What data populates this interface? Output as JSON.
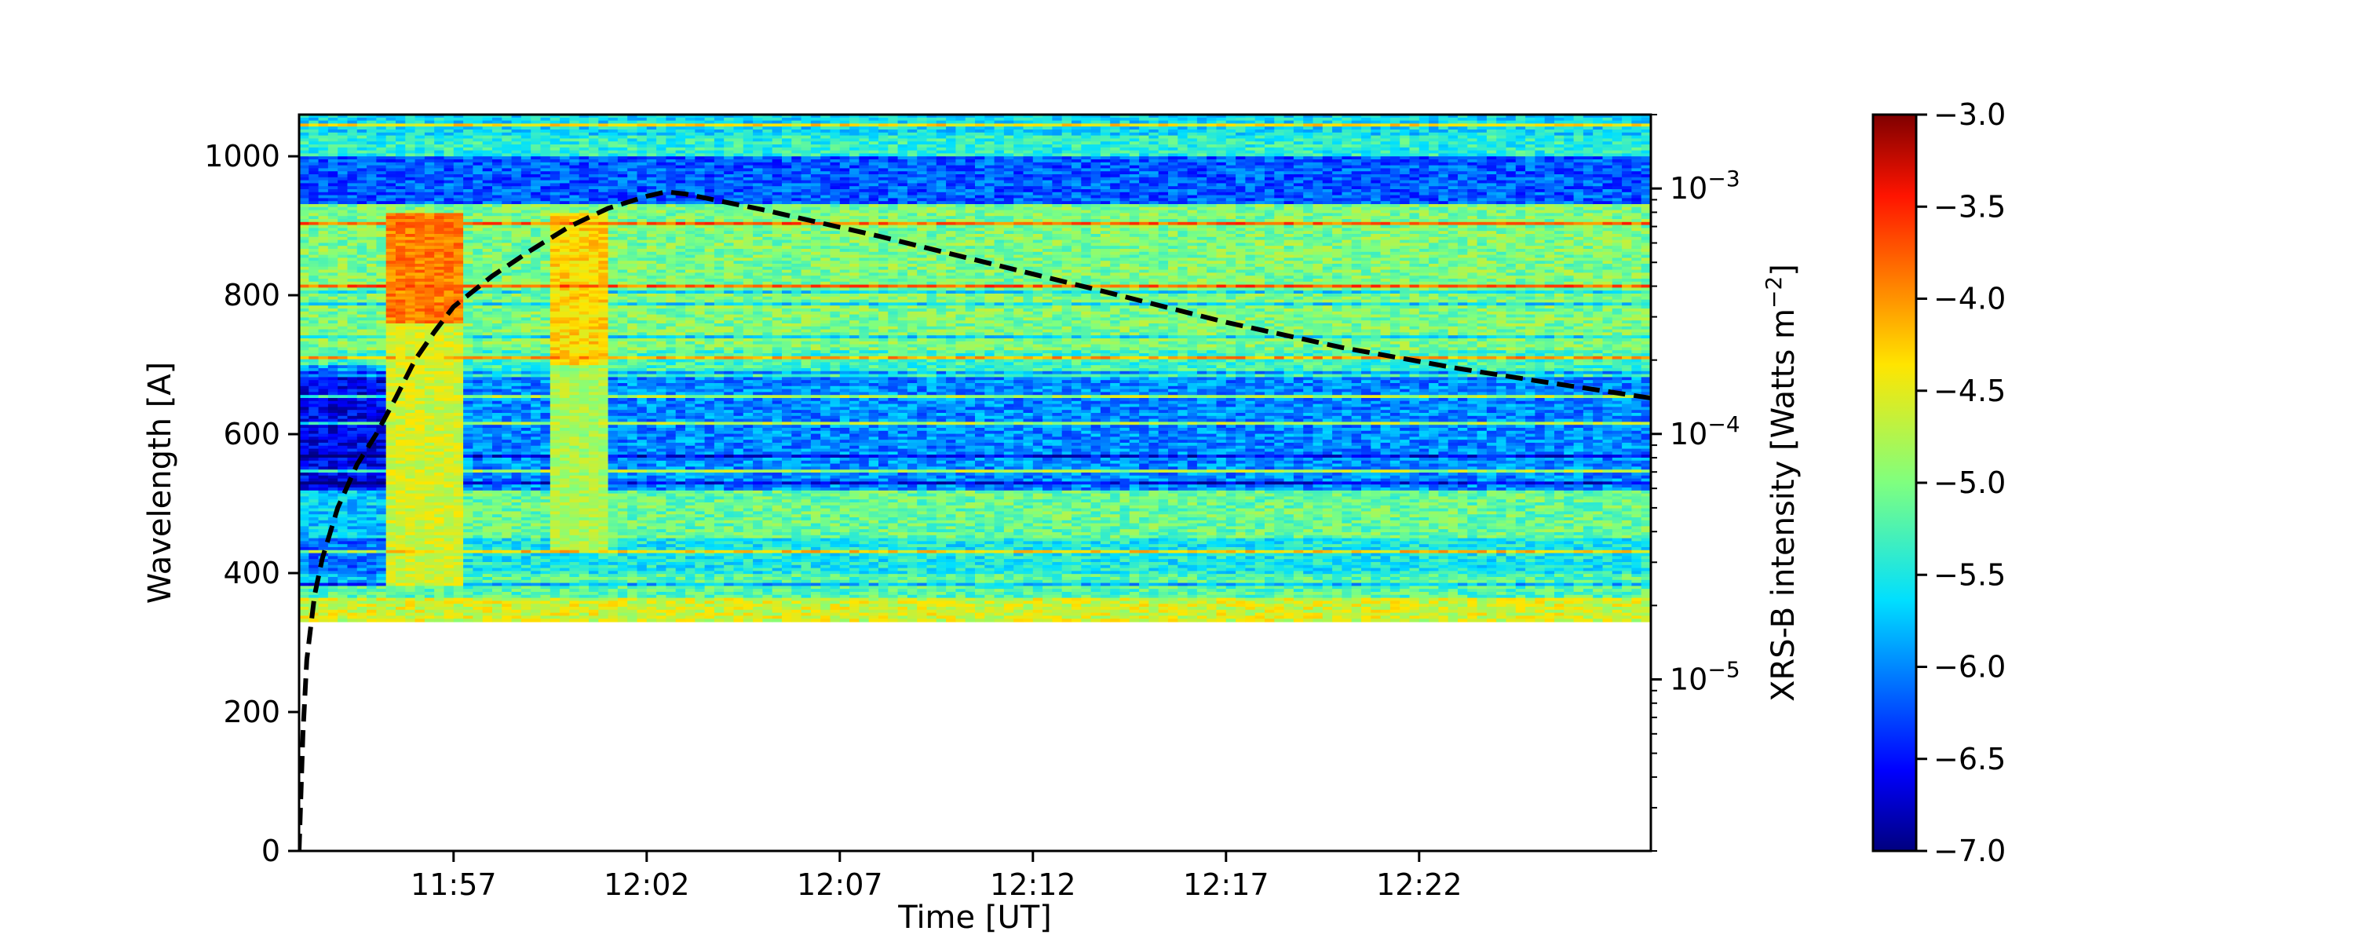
{
  "chart_data": {
    "type": "heatmap",
    "title": "",
    "xlabel": "Time [UT]",
    "ylabel": "Wavelength [A]",
    "y2label": "XRS-B intensity [Watts m",
    "y2label_sup": "−2",
    "y2label_end": "]",
    "x_range": [
      "11:53",
      "12:28"
    ],
    "x_ticks": [
      {
        "t": "11:57",
        "label": "11:57"
      },
      {
        "t": "12:02",
        "label": "12:02"
      },
      {
        "t": "12:07",
        "label": "12:07"
      },
      {
        "t": "12:12",
        "label": "12:12"
      },
      {
        "t": "12:17",
        "label": "12:17"
      },
      {
        "t": "12:22",
        "label": "12:22"
      }
    ],
    "ylim": [
      0,
      1060
    ],
    "y_ticks": [
      {
        "v": 0,
        "label": "0"
      },
      {
        "v": 200,
        "label": "200"
      },
      {
        "v": 400,
        "label": "400"
      },
      {
        "v": 600,
        "label": "600"
      },
      {
        "v": 800,
        "label": "800"
      },
      {
        "v": 1000,
        "label": "1000"
      }
    ],
    "y2_scale": "log",
    "y2lim": [
      2e-06,
      0.002
    ],
    "y2_ticks": [
      {
        "v": 1e-05,
        "base": "10",
        "exp": "−5"
      },
      {
        "v": 0.0001,
        "base": "10",
        "exp": "−4"
      },
      {
        "v": 0.001,
        "base": "10",
        "exp": "−3"
      }
    ],
    "heatmap": {
      "wavelength_range": [
        330,
        1060
      ],
      "colormap": "jet",
      "vmin": -7.0,
      "vmax": -3.0,
      "features": [
        {
          "t_start": "11:55:15",
          "t_end": "11:57:10",
          "w_range": [
            760,
            920
          ],
          "level": -3.9
        },
        {
          "t_start": "11:55:15",
          "t_end": "11:57:10",
          "w_range": [
            380,
            760
          ],
          "level": -4.6
        },
        {
          "t_start": "11:59:30",
          "t_end": "12:01:00",
          "w_range": [
            700,
            920
          ],
          "level": -4.3
        },
        {
          "t_start": "11:59:30",
          "t_end": "12:01:00",
          "w_range": [
            430,
            700
          ],
          "level": -4.8
        }
      ]
    },
    "colorbar": {
      "ticks": [
        {
          "v": -3.0,
          "label": "−3.0"
        },
        {
          "v": -3.5,
          "label": "−3.5"
        },
        {
          "v": -4.0,
          "label": "−4.0"
        },
        {
          "v": -4.5,
          "label": "−4.5"
        },
        {
          "v": -5.0,
          "label": "−5.0"
        },
        {
          "v": -5.5,
          "label": "−5.5"
        },
        {
          "v": -6.0,
          "label": "−6.0"
        },
        {
          "v": -6.5,
          "label": "−6.5"
        },
        {
          "v": -7.0,
          "label": "−7.0"
        }
      ]
    },
    "series": [
      {
        "style": "dashed",
        "color": "#000000",
        "axis": "y2",
        "points": [
          [
            "11:53:00",
            2e-06
          ],
          [
            "11:53:06",
            6e-06
          ],
          [
            "11:53:12",
            1.2e-05
          ],
          [
            "11:53:24",
            2.2e-05
          ],
          [
            "11:53:36",
            3.1e-05
          ],
          [
            "11:54:00",
            5e-05
          ],
          [
            "11:54:30",
            7.5e-05
          ],
          [
            "11:55:00",
            0.0001
          ],
          [
            "11:55:30",
            0.00014
          ],
          [
            "11:56:00",
            0.0002
          ],
          [
            "11:56:30",
            0.00026
          ],
          [
            "11:57:00",
            0.00033
          ],
          [
            "11:58:00",
            0.00044
          ],
          [
            "11:59:00",
            0.00056
          ],
          [
            "12:00:00",
            0.0007
          ],
          [
            "12:01:00",
            0.00083
          ],
          [
            "12:02:00",
            0.00093
          ],
          [
            "12:02:30",
            0.00097
          ],
          [
            "12:03:00",
            0.00095
          ],
          [
            "12:05:00",
            0.00082
          ],
          [
            "12:08:00",
            0.00064
          ],
          [
            "12:11:00",
            0.00049
          ],
          [
            "12:14:00",
            0.000375
          ],
          [
            "12:17:00",
            0.000285
          ],
          [
            "12:20:00",
            0.000225
          ],
          [
            "12:23:00",
            0.000185
          ],
          [
            "12:25:00",
            0.000165
          ],
          [
            "12:28:00",
            0.00014
          ]
        ]
      }
    ]
  }
}
